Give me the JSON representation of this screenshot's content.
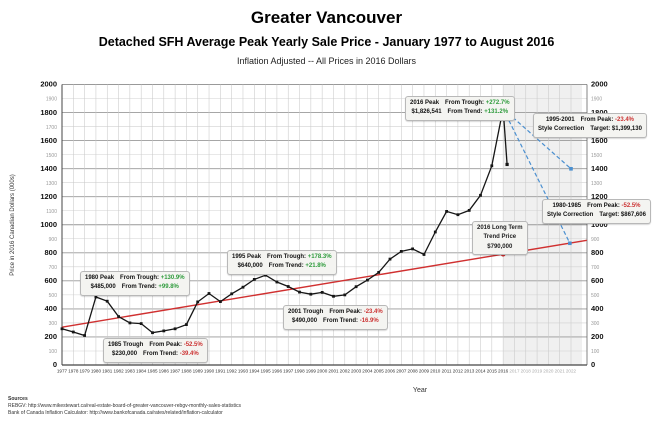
{
  "header": {
    "title": "Greater Vancouver",
    "subtitle": "Detached SFH Average Peak Yearly Sale Price - January 1977 to August 2016",
    "note": "Inflation Adjusted -- All Prices in 2016 Dollars"
  },
  "axes": {
    "y_title": "Price in 2016 Canadian Dollars (000s)",
    "x_title": "Year"
  },
  "footer": {
    "sources_label": "Sources",
    "lines": [
      "REBGV: http://www.mikestewart.ca/real-estate-board-of-greater-vancouver-rebgv-monthly-sales-statistics",
      "Bank of Canada Inflation Calculator: http://www.bankofcanada.ca/rates/related/inflation-calculator"
    ]
  },
  "colors": {
    "pos": "#2e9b3c",
    "neg": "#cc3333",
    "series": "#161616",
    "trend": "#d03030",
    "projection": "#4a8fd0",
    "grid_major": "#999999",
    "grid_minor": "#d2d2d2"
  },
  "chart_data": {
    "type": "line",
    "title": "Greater Vancouver Detached SFH Average Peak Yearly Sale Price - January 1977 to August 2016",
    "xlabel": "Year",
    "ylabel": "Price in 2016 Canadian Dollars (000s)",
    "ylim": [
      0,
      2000
    ],
    "y_step": 100,
    "x_axis": {
      "start": 1977,
      "end": 2022,
      "future_start": 2017
    },
    "grid": true,
    "x": [
      1977,
      1978,
      1979,
      1980,
      1981,
      1982,
      1983,
      1984,
      1985,
      1986,
      1987,
      1988,
      1989,
      1990,
      1991,
      1992,
      1993,
      1994,
      1995,
      1996,
      1997,
      1998,
      1999,
      2000,
      2001,
      2002,
      2003,
      2004,
      2005,
      2006,
      2007,
      2008,
      2009,
      2010,
      2011,
      2012,
      2013,
      2014,
      2015,
      2016
    ],
    "values": [
      258,
      235,
      210,
      485,
      455,
      345,
      300,
      295,
      230,
      243,
      258,
      288,
      450,
      510,
      452,
      508,
      555,
      610,
      640,
      592,
      560,
      520,
      505,
      518,
      490,
      500,
      558,
      605,
      660,
      755,
      810,
      828,
      788,
      948,
      1095,
      1072,
      1102,
      1210,
      1420,
      1826.5
    ],
    "units": "thousands of 2016 CAD",
    "post_peak_segment": {
      "x": 2016.35,
      "value": 1430
    },
    "trend_line": {
      "start": {
        "x": 1977,
        "value": 270
      },
      "end": {
        "x": 2023.4,
        "value": 889
      },
      "value_2016": 790
    },
    "projections": [
      {
        "name": "1995-2001 style correction",
        "from": {
          "x": 2016,
          "value": 1826.5
        },
        "to": {
          "x": 2022,
          "value": 1399
        }
      },
      {
        "name": "1980-1985 style correction",
        "from": {
          "x": 2016,
          "value": 1826.5
        },
        "to": {
          "x": 2021.9,
          "value": 868
        }
      }
    ],
    "callouts": [
      {
        "id": "peak-1980",
        "rows": [
          {
            "l": "1980 Peak",
            "rl": "From Trough:",
            "rv": "+130.9%",
            "vc": "pos"
          },
          {
            "l": "$485,000",
            "rl": "From Trend:",
            "rv": "+99.8%",
            "vc": "pos"
          }
        ]
      },
      {
        "id": "trough-1985",
        "rows": [
          {
            "l": "1985 Trough",
            "rl": "From Peak:",
            "rv": "-52.5%",
            "vc": "neg"
          },
          {
            "l": "$230,000",
            "rl": "From Trend:",
            "rv": "-39.4%",
            "vc": "neg"
          }
        ]
      },
      {
        "id": "peak-1995",
        "rows": [
          {
            "l": "1995 Peak",
            "rl": "From Trough:",
            "rv": "+178.3%",
            "vc": "pos"
          },
          {
            "l": "$640,000",
            "rl": "From Trend:",
            "rv": "+21.8%",
            "vc": "pos"
          }
        ]
      },
      {
        "id": "trough-2001",
        "rows": [
          {
            "l": "2001 Trough",
            "rl": "From Peak:",
            "rv": "-23.4%",
            "vc": "neg"
          },
          {
            "l": "$490,000",
            "rl": "From Trend:",
            "rv": "-16.9%",
            "vc": "neg"
          }
        ]
      },
      {
        "id": "peak-2016",
        "rows": [
          {
            "l": "2016 Peak",
            "rl": "From Trough:",
            "rv": "+272.7%",
            "vc": "pos"
          },
          {
            "l": "$1,826,541",
            "rl": "From Trend:",
            "rv": "+131.2%",
            "vc": "pos"
          }
        ]
      },
      {
        "id": "corr-1995",
        "rows": [
          {
            "l": "1995-2001",
            "rl": "From Peak:",
            "rv": "-23.4%",
            "vc": "neg"
          },
          {
            "l": "Style Correction",
            "rl": "Target: $1,399,130",
            "rv": "",
            "vc": ""
          }
        ]
      },
      {
        "id": "corr-1980",
        "rows": [
          {
            "l": "1980-1985",
            "rl": "From Peak:",
            "rv": "-52.5%",
            "vc": "neg"
          },
          {
            "l": "Style Correction",
            "rl": "Target: $867,606",
            "rv": "",
            "vc": ""
          }
        ]
      },
      {
        "id": "trend-2016",
        "center": [
          "2016 Long Term",
          "Trend Price",
          "$790,000"
        ]
      }
    ]
  }
}
